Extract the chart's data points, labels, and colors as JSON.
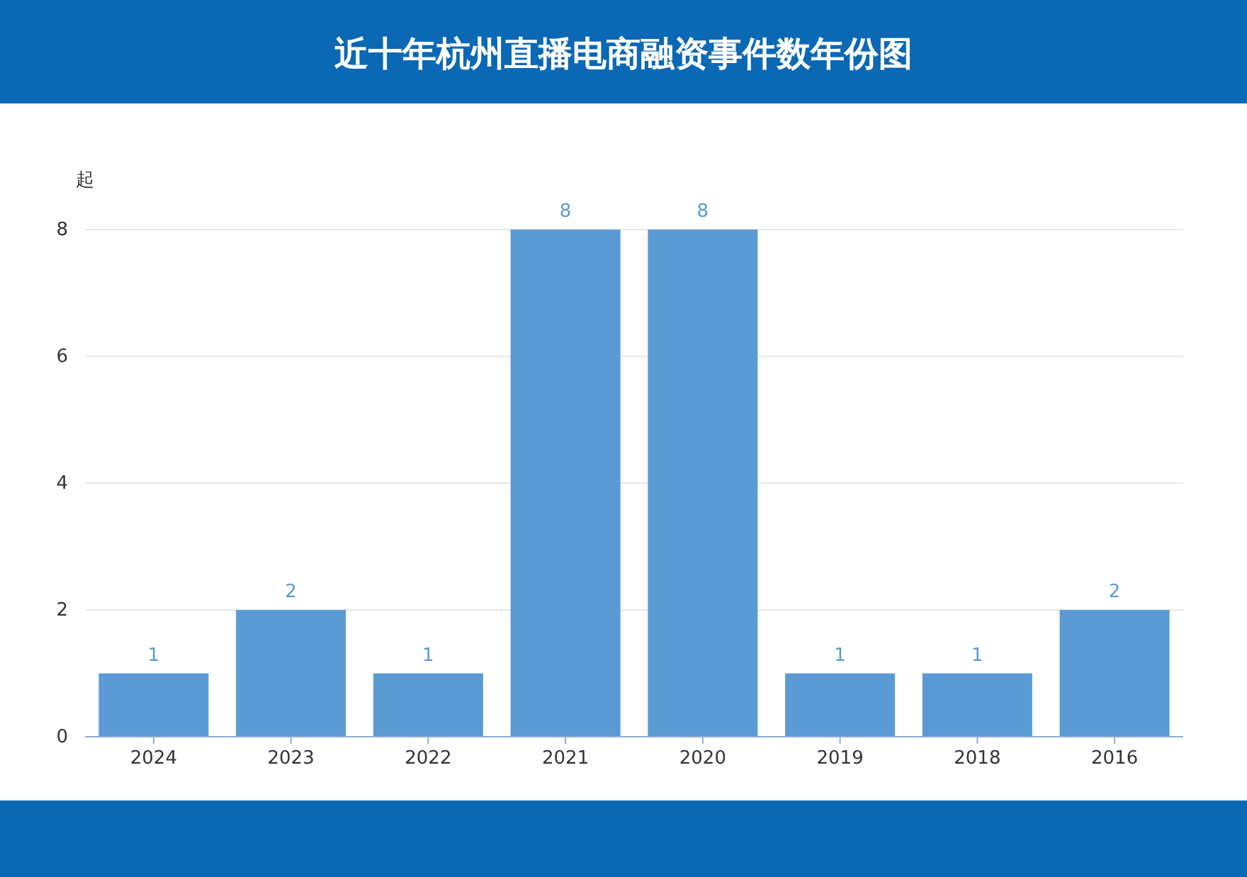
{
  "chart_data": {
    "type": "bar",
    "title": "近十年杭州直播电商融资事件数年份图",
    "ylabel": "起",
    "categories": [
      "2024",
      "2023",
      "2022",
      "2021",
      "2020",
      "2019",
      "2018",
      "2016"
    ],
    "values": [
      1,
      2,
      1,
      8,
      8,
      1,
      1,
      2
    ],
    "color": "#5b9bd5",
    "ylim": [
      0,
      8
    ],
    "yticks": [
      0,
      2,
      4,
      6,
      8
    ],
    "grid": "y",
    "data_labels": true
  }
}
